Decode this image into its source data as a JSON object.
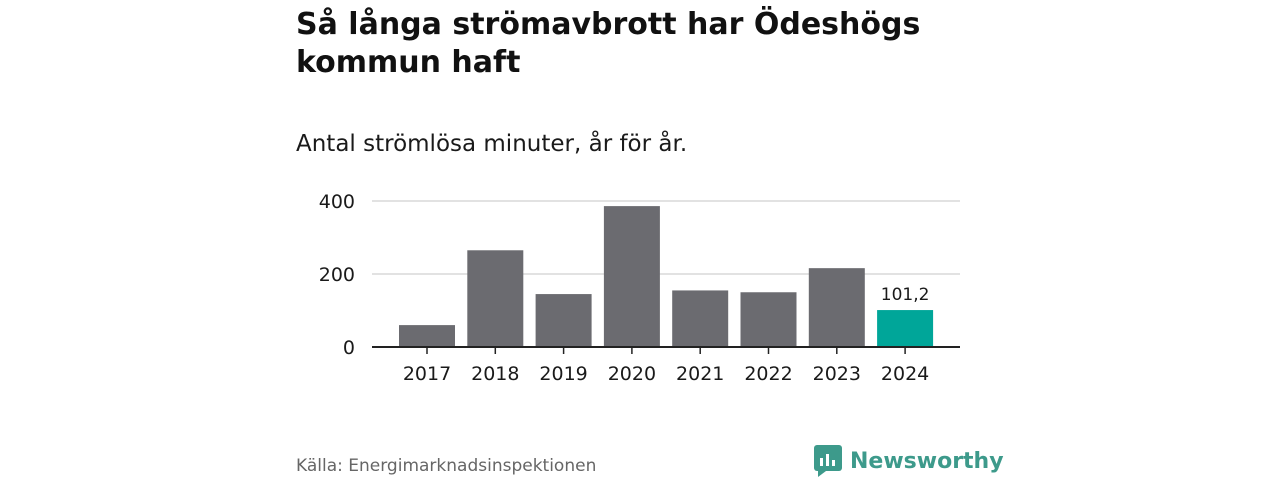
{
  "title": "Så långa strömavbrott har Ödeshögs kommun haft",
  "subtitle": "Antal strömlösa minuter, år för år.",
  "source": "Källa: Energimarknadsinspektionen",
  "brand": {
    "name": "Newsworthy",
    "icon": "newsworthy-logo-icon",
    "color": "#3d9a8b"
  },
  "chart_data": {
    "type": "bar",
    "categories": [
      "2017",
      "2018",
      "2019",
      "2020",
      "2021",
      "2022",
      "2023",
      "2024"
    ],
    "values": [
      60,
      265,
      145,
      386,
      155,
      150,
      216,
      101.2
    ],
    "ylim": [
      0,
      400
    ],
    "yticks": [
      0,
      200,
      400
    ],
    "yticks_labels": [
      "0",
      "200",
      "400"
    ],
    "grid": true,
    "bar_color": "#6b6b70",
    "highlight_color": "#00a699",
    "highlight_index": 7,
    "data_labels": [
      {
        "index": 7,
        "text": "101,2"
      }
    ]
  }
}
